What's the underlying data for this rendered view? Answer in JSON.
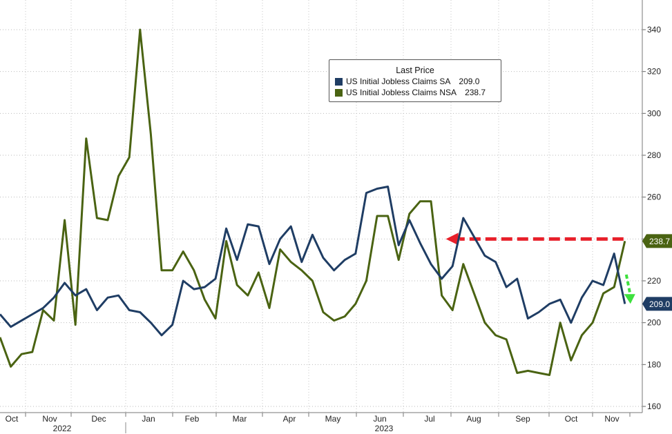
{
  "chart_data": {
    "type": "line",
    "ylim": [
      155,
      350
    ],
    "yticks": [
      160,
      180,
      200,
      220,
      240,
      260,
      280,
      300,
      320,
      340
    ],
    "month_labels": [
      "Oct",
      "Nov",
      "Dec",
      "Jan",
      "Feb",
      "Mar",
      "Apr",
      "May",
      "Jun",
      "Jul",
      "Aug",
      "Sep",
      "Oct",
      "Nov"
    ],
    "year_labels": [
      "2022",
      "2023"
    ],
    "legend": {
      "title": "Last Price",
      "placement": "top-center",
      "entries": [
        {
          "name": "US Initial Jobless Claims SA",
          "value": "209.0",
          "color": "#1f3d64"
        },
        {
          "name": "US Initial Jobless Claims NSA",
          "value": "238.7",
          "color": "#4a6312"
        }
      ]
    },
    "series": [
      {
        "name": "US Initial Jobless Claims SA",
        "color": "#1f3d64",
        "last_label": "209.0",
        "values": [
          204,
          198,
          201,
          204,
          207,
          212,
          219,
          213,
          216,
          206,
          212,
          213,
          206,
          205,
          200,
          194,
          199,
          220,
          216,
          217,
          221,
          245,
          230,
          247,
          246,
          228,
          240,
          246,
          229,
          242,
          231,
          225,
          230,
          233,
          262,
          264,
          265,
          237,
          249,
          238,
          228,
          221,
          227,
          250,
          241,
          232,
          229,
          217,
          221,
          202,
          205,
          209,
          211,
          200,
          212,
          220,
          218,
          233,
          209
        ]
      },
      {
        "name": "US Initial Jobless Claims NSA",
        "color": "#4a6312",
        "last_label": "238.7",
        "values": [
          193,
          179,
          185,
          186,
          206,
          201,
          249,
          199,
          288,
          250,
          249,
          270,
          279,
          340,
          290,
          225,
          225,
          234,
          225,
          211,
          202,
          239,
          218,
          213,
          224,
          207,
          235,
          229,
          225,
          220,
          205,
          201,
          203,
          209,
          220,
          251,
          251,
          230,
          252,
          258,
          258,
          213,
          206,
          228,
          214,
          200,
          194,
          192,
          176,
          177,
          176,
          175,
          200,
          182,
          194,
          200,
          214,
          217,
          239
        ]
      }
    ],
    "annotations": [
      {
        "type": "dashed-arrow",
        "color": "#e8202a",
        "from_index": 58,
        "to_index": 41,
        "y": 240
      },
      {
        "type": "dashed-arrow",
        "color": "#3de03d",
        "from_index": 58,
        "y_from": 221,
        "y_to": 211
      }
    ]
  }
}
